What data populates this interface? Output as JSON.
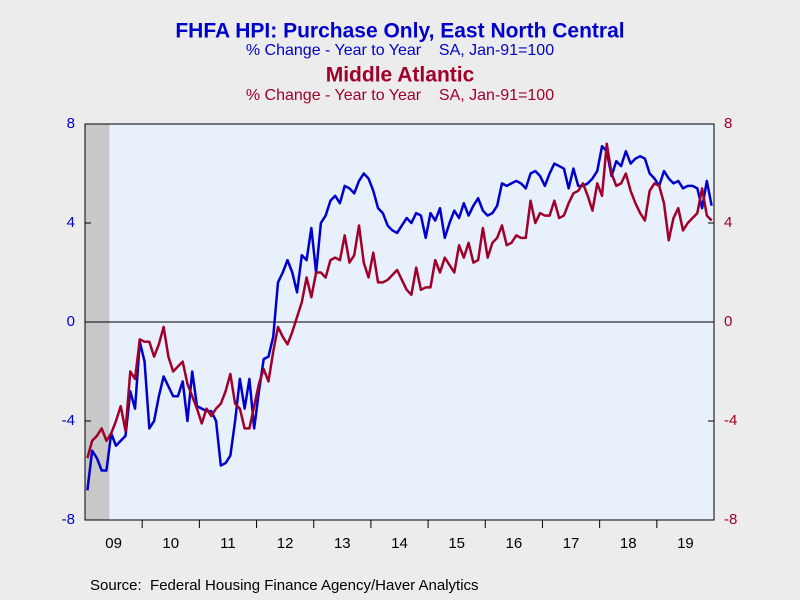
{
  "chart_data": {
    "type": "line",
    "source": "Source:  Federal Housing Finance Agency/Haver Analytics",
    "categories": [
      null,
      null,
      null,
      null,
      null,
      null,
      "09",
      null,
      null,
      null,
      null,
      null,
      null,
      null,
      null,
      null,
      null,
      null,
      "10",
      null,
      null,
      null,
      null,
      null,
      null,
      null,
      null,
      null,
      null,
      null,
      "11",
      null,
      null,
      null,
      null,
      null,
      null,
      null,
      null,
      null,
      null,
      null,
      "12",
      null,
      null,
      null,
      null,
      null,
      null,
      null,
      null,
      null,
      null,
      null,
      "13",
      null,
      null,
      null,
      null,
      null,
      null,
      null,
      null,
      null,
      null,
      null,
      "14",
      null,
      null,
      null,
      null,
      null,
      null,
      null,
      null,
      null,
      null,
      null,
      "15",
      null,
      null,
      null,
      null,
      null,
      null,
      null,
      null,
      null,
      null,
      null,
      "16",
      null,
      null,
      null,
      null,
      null,
      null,
      null,
      null,
      null,
      null,
      null,
      "17",
      null,
      null,
      null,
      null,
      null,
      null,
      null,
      null,
      null,
      null,
      null,
      "18",
      null,
      null,
      null,
      null,
      null,
      null,
      null,
      null,
      null,
      null,
      null,
      "19",
      null,
      null,
      null,
      null,
      null
    ],
    "series": [
      {
        "name": "FHFA HPI: Purchase Only, East North Central",
        "subtitle": "% Change - Year to Year    SA, Jan-91=100",
        "color": "#0000cc",
        "axis": "y",
        "values": [
          -6.8,
          -5.2,
          -5.5,
          -6.0,
          -6.0,
          -4.5,
          -5.0,
          -4.8,
          -4.6,
          -2.8,
          -3.5,
          -0.8,
          -1.6,
          -4.3,
          -4.0,
          -3.0,
          -2.2,
          -2.6,
          -3.0,
          -3.0,
          -2.4,
          -4.0,
          -2.0,
          -3.4,
          -3.5,
          -3.6,
          -3.6,
          -4.0,
          -5.8,
          -5.7,
          -5.4,
          -4.0,
          -2.3,
          -3.5,
          -2.3,
          -4.3,
          -2.8,
          -1.5,
          -1.4,
          -0.6,
          1.6,
          2.0,
          2.5,
          2.0,
          1.2,
          2.7,
          2.5,
          3.8,
          2.0,
          4.0,
          4.3,
          4.9,
          5.1,
          4.8,
          5.5,
          5.4,
          5.2,
          5.7,
          6.0,
          5.8,
          5.3,
          4.6,
          4.4,
          3.9,
          3.7,
          3.6,
          3.9,
          4.2,
          4.0,
          4.4,
          4.3,
          3.4,
          4.4,
          4.1,
          4.6,
          3.4,
          4.0,
          4.5,
          4.2,
          4.8,
          4.3,
          4.7,
          5.0,
          4.5,
          4.3,
          4.4,
          4.7,
          5.6,
          5.5,
          5.6,
          5.7,
          5.6,
          5.4,
          6.0,
          6.1,
          5.9,
          5.5,
          6.0,
          6.4,
          6.3,
          6.2,
          5.4,
          6.2,
          5.5,
          5.5,
          5.6,
          5.8,
          6.1,
          7.1,
          6.9,
          5.9,
          6.5,
          6.3,
          6.9,
          6.4,
          6.6,
          6.7,
          6.6,
          6.0,
          5.8,
          5.5,
          6.1,
          5.8,
          5.6,
          5.7,
          5.4,
          5.5,
          5.5,
          5.4,
          4.6,
          5.7,
          4.7
        ]
      },
      {
        "name": "Middle Atlantic",
        "subtitle": "% Change - Year to Year    SA, Jan-91=100",
        "color": "#a0002a",
        "axis": "y2",
        "values": [
          -5.5,
          -4.8,
          -4.6,
          -4.3,
          -4.8,
          -4.5,
          -4.0,
          -3.4,
          -4.4,
          -2.0,
          -2.3,
          -0.7,
          -0.8,
          -0.8,
          -1.4,
          -0.9,
          -0.2,
          -1.4,
          -2.0,
          -1.8,
          -1.6,
          -2.5,
          -3.0,
          -3.5,
          -4.1,
          -3.5,
          -3.8,
          -3.5,
          -3.3,
          -2.8,
          -2.1,
          -3.3,
          -3.5,
          -4.3,
          -4.3,
          -3.4,
          -2.5,
          -1.9,
          -2.4,
          -1.2,
          -0.2,
          -0.6,
          -0.9,
          -0.4,
          0.2,
          0.8,
          1.8,
          1.0,
          2.0,
          2.0,
          1.8,
          2.5,
          2.6,
          2.5,
          3.5,
          2.4,
          2.7,
          3.9,
          2.4,
          1.8,
          2.8,
          1.6,
          1.6,
          1.7,
          1.9,
          2.1,
          1.7,
          1.3,
          1.1,
          2.2,
          1.3,
          1.4,
          1.4,
          2.5,
          2.0,
          2.6,
          2.3,
          2.0,
          3.1,
          2.6,
          3.2,
          2.4,
          2.5,
          3.8,
          2.6,
          3.2,
          3.4,
          3.9,
          3.1,
          3.2,
          3.5,
          3.4,
          3.4,
          4.9,
          4.0,
          4.4,
          4.3,
          4.3,
          4.9,
          4.2,
          4.3,
          4.8,
          5.2,
          5.3,
          5.6,
          5.1,
          4.5,
          5.6,
          5.1,
          7.2,
          6.0,
          5.5,
          5.6,
          6.0,
          5.3,
          4.8,
          4.4,
          4.1,
          5.3,
          5.6,
          5.5,
          4.8,
          3.3,
          4.2,
          4.6,
          3.7,
          4.0,
          4.2,
          4.4,
          5.4,
          4.3,
          4.1
        ]
      }
    ],
    "ylim": [
      -8,
      8
    ],
    "yticks": [
      -8,
      -4,
      0,
      4,
      8
    ],
    "y2lim": [
      -8,
      8
    ],
    "y2ticks": [
      -8,
      -4,
      0,
      4,
      8
    ],
    "zero_line": true
  }
}
